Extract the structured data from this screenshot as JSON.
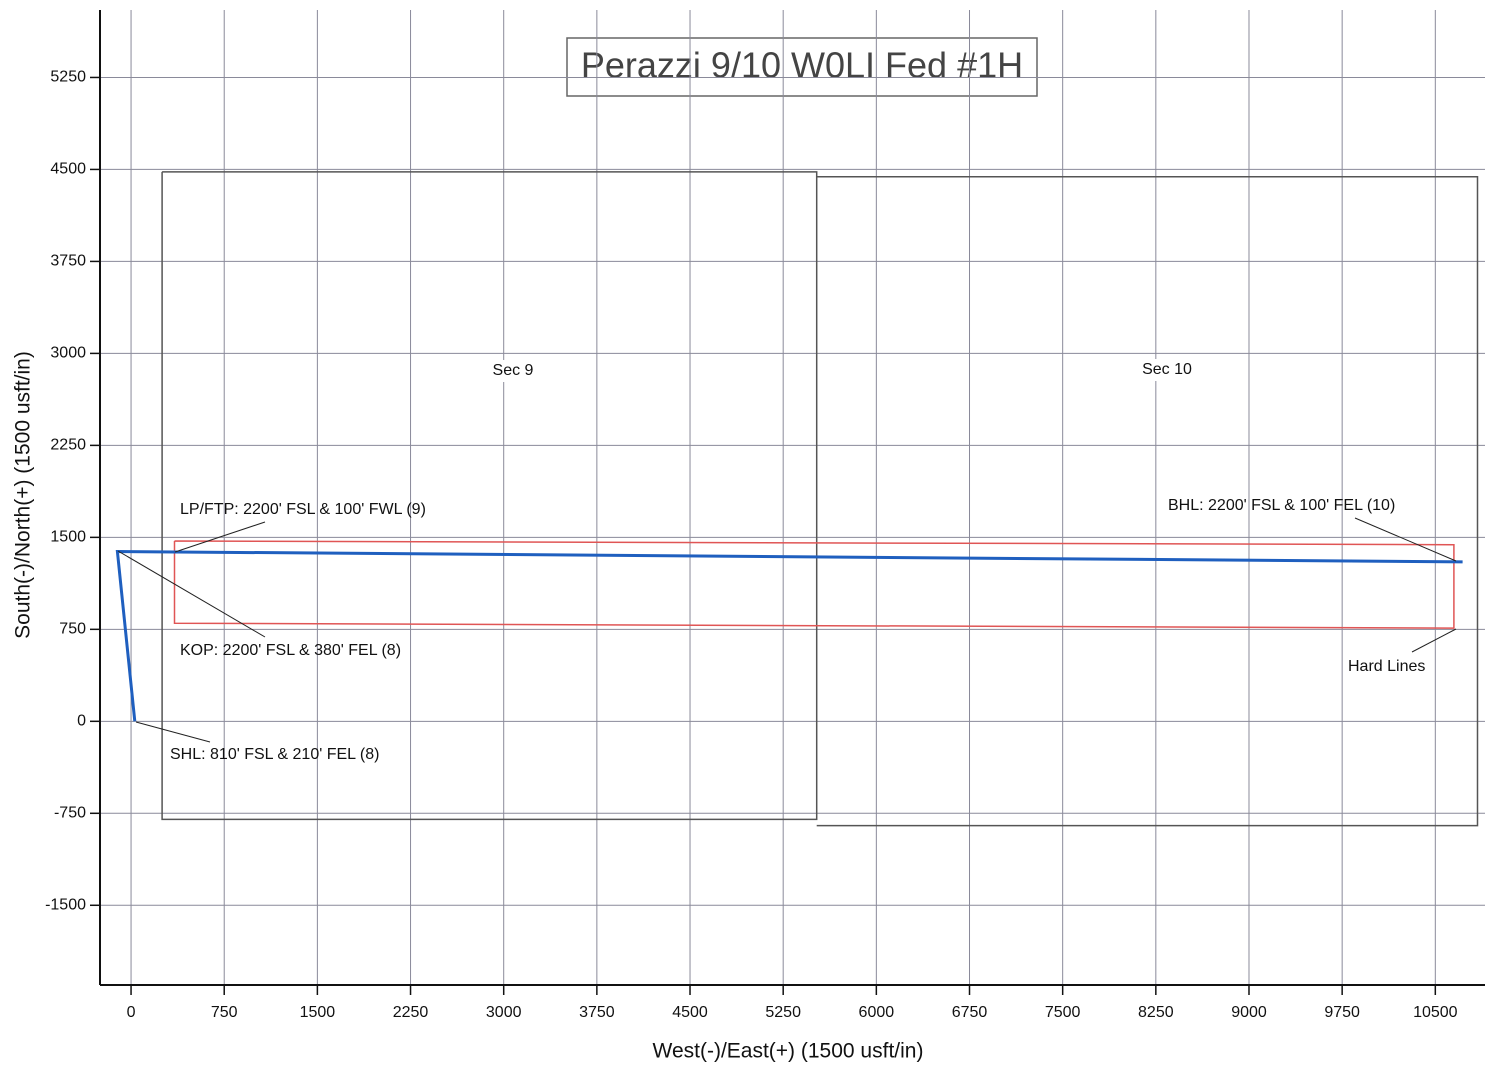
{
  "chart_data": {
    "type": "line",
    "title": "Perazzi 9/10 W0LI Fed #1H",
    "x_label": "West(-)/East(+) (1500 usft/in)",
    "y_label": "South(-)/North(+) (1500 usft/in)",
    "xlim": [
      -250,
      10900
    ],
    "ylim": [
      -2150,
      5800
    ],
    "xticks": [
      0,
      750,
      1500,
      2250,
      3000,
      3750,
      4500,
      5250,
      6000,
      6750,
      7500,
      8250,
      9000,
      9750,
      10500
    ],
    "yticks": [
      -1500,
      -750,
      0,
      750,
      1500,
      2250,
      3000,
      3750,
      4500,
      5250
    ],
    "grid": true,
    "series": [
      {
        "color": "#555555",
        "x": [
          250,
          5520,
          5520,
          250,
          250
        ],
        "values": [
          4480,
          4480,
          -800,
          -800,
          4480
        ]
      },
      {
        "color": "#555555",
        "x": [
          5520,
          10840,
          10840,
          5520
        ],
        "values": [
          4440,
          4440,
          -850,
          -850
        ]
      },
      {
        "color": "#e05555",
        "x": [
          350,
          10650,
          10650,
          350,
          350
        ],
        "values": [
          1470,
          1440,
          760,
          800,
          1470
        ]
      },
      {
        "color": "#1f5fbf",
        "x": [
          30,
          -110,
          10720
        ],
        "values": [
          0,
          1385,
          1300
        ]
      }
    ],
    "annotations": [
      "LP/FTP: 2200' FSL & 100' FWL (9)",
      "KOP: 2200' FSL & 380' FEL (8)",
      "SHL: 810' FSL & 210' FEL (8)",
      "BHL: 2200' FSL & 100' FEL (10)",
      "Hard Lines",
      "Sec 9",
      "Sec 10"
    ]
  }
}
